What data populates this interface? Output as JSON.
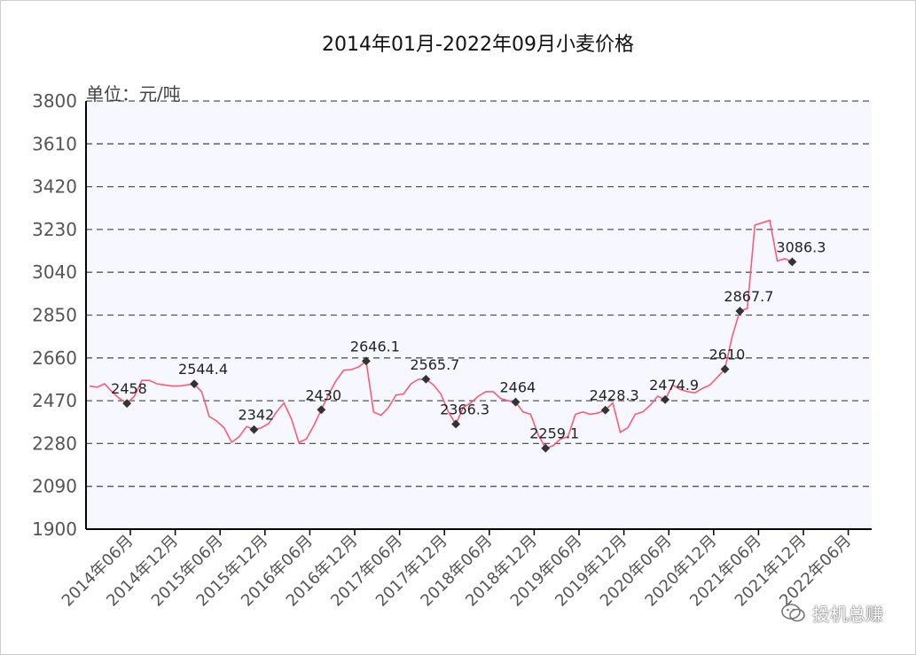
{
  "chart_data": {
    "type": "line",
    "title": "2014年01月-2022年09月小麦价格",
    "unit_label": "单位：元/吨",
    "ylim": [
      1900,
      3800
    ],
    "y_ticks": [
      "3800",
      "3610",
      "3420",
      "3230",
      "3040",
      "2850",
      "2660",
      "2470",
      "2280",
      "2090",
      "1900"
    ],
    "x_ticks": [
      "2014年06月",
      "2014年12月",
      "2015年06月",
      "2015年12月",
      "2016年06月",
      "2016年12月",
      "2017年06月",
      "2017年12月",
      "2018年06月",
      "2018年12月",
      "2019年06月",
      "2019年12月",
      "2020年06月",
      "2020年12月",
      "2021年06月",
      "2021年12月",
      "2022年06月"
    ],
    "grid": "horizontal-dashed",
    "series": [
      {
        "color": "#ff5a6e",
        "points": [
          [
            "2014-01",
            2535
          ],
          [
            "2014-02",
            2530
          ],
          [
            "2014-03",
            2545
          ],
          [
            "2014-04",
            2510
          ],
          [
            "2014-05",
            2480
          ],
          [
            "2014-06",
            2458
          ],
          [
            "2014-07",
            2490
          ],
          [
            "2014-08",
            2560
          ],
          [
            "2014-09",
            2560
          ],
          [
            "2014-10",
            2545
          ],
          [
            "2014-11",
            2540
          ],
          [
            "2014-12",
            2535
          ],
          [
            "2015-01",
            2535
          ],
          [
            "2015-02",
            2540
          ],
          [
            "2015-03",
            2544.4
          ],
          [
            "2015-04",
            2510
          ],
          [
            "2015-05",
            2400
          ],
          [
            "2015-06",
            2380
          ],
          [
            "2015-07",
            2350
          ],
          [
            "2015-08",
            2285
          ],
          [
            "2015-09",
            2310
          ],
          [
            "2015-10",
            2355
          ],
          [
            "2015-11",
            2342
          ],
          [
            "2015-12",
            2350
          ],
          [
            "2016-01",
            2370
          ],
          [
            "2016-02",
            2420
          ],
          [
            "2016-03",
            2460
          ],
          [
            "2016-04",
            2390
          ],
          [
            "2016-05",
            2285
          ],
          [
            "2016-06",
            2300
          ],
          [
            "2016-07",
            2360
          ],
          [
            "2016-08",
            2430
          ],
          [
            "2016-09",
            2500
          ],
          [
            "2016-10",
            2560
          ],
          [
            "2016-11",
            2605
          ],
          [
            "2016-12",
            2608
          ],
          [
            "2017-01",
            2620
          ],
          [
            "2017-02",
            2646.1
          ],
          [
            "2017-03",
            2420
          ],
          [
            "2017-04",
            2405
          ],
          [
            "2017-05",
            2440
          ],
          [
            "2017-06",
            2495
          ],
          [
            "2017-07",
            2500
          ],
          [
            "2017-08",
            2545
          ],
          [
            "2017-09",
            2565
          ],
          [
            "2017-10",
            2565.7
          ],
          [
            "2017-11",
            2540
          ],
          [
            "2017-12",
            2500
          ],
          [
            "2018-01",
            2420
          ],
          [
            "2018-02",
            2366.3
          ],
          [
            "2018-03",
            2440
          ],
          [
            "2018-04",
            2460
          ],
          [
            "2018-05",
            2490
          ],
          [
            "2018-06",
            2510
          ],
          [
            "2018-07",
            2510
          ],
          [
            "2018-08",
            2480
          ],
          [
            "2018-09",
            2470
          ],
          [
            "2018-10",
            2464
          ],
          [
            "2018-11",
            2420
          ],
          [
            "2018-12",
            2410
          ],
          [
            "2019-01",
            2320
          ],
          [
            "2019-02",
            2259.1
          ],
          [
            "2019-03",
            2270
          ],
          [
            "2019-04",
            2300
          ],
          [
            "2019-05",
            2310
          ],
          [
            "2019-06",
            2410
          ],
          [
            "2019-07",
            2420
          ],
          [
            "2019-08",
            2410
          ],
          [
            "2019-09",
            2415
          ],
          [
            "2019-10",
            2428.3
          ],
          [
            "2019-11",
            2460
          ],
          [
            "2019-12",
            2330
          ],
          [
            "2020-01",
            2350
          ],
          [
            "2020-02",
            2410
          ],
          [
            "2020-03",
            2420
          ],
          [
            "2020-04",
            2450
          ],
          [
            "2020-05",
            2490
          ],
          [
            "2020-06",
            2474.9
          ],
          [
            "2020-07",
            2540
          ],
          [
            "2020-08",
            2520
          ],
          [
            "2020-09",
            2510
          ],
          [
            "2020-10",
            2505
          ],
          [
            "2020-11",
            2525
          ],
          [
            "2020-12",
            2540
          ],
          [
            "2021-01",
            2575
          ],
          [
            "2021-02",
            2610
          ],
          [
            "2021-03",
            2760
          ],
          [
            "2021-04",
            2867.7
          ],
          [
            "2021-05",
            2880
          ],
          [
            "2021-06",
            3250
          ],
          [
            "2021-07",
            3260
          ],
          [
            "2021-08",
            3270
          ],
          [
            "2021-09",
            3090
          ],
          [
            "2021-10",
            3100
          ],
          [
            "2021-11",
            3086.3
          ]
        ],
        "labels": [
          {
            "at": "2014-06",
            "text": "2458"
          },
          {
            "at": "2015-03",
            "text": "2544.4"
          },
          {
            "at": "2015-11",
            "text": "2342"
          },
          {
            "at": "2016-08",
            "text": "2430"
          },
          {
            "at": "2017-02",
            "text": "2646.1"
          },
          {
            "at": "2017-10",
            "text": "2565.7"
          },
          {
            "at": "2018-02",
            "text": "2366.3"
          },
          {
            "at": "2018-10",
            "text": "2464"
          },
          {
            "at": "2019-02",
            "text": "2259.1"
          },
          {
            "at": "2019-10",
            "text": "2428.3"
          },
          {
            "at": "2020-06",
            "text": "2474.9"
          },
          {
            "at": "2021-02",
            "text": "2610"
          },
          {
            "at": "2021-04",
            "text": "2867.7"
          },
          {
            "at": "2021-11",
            "text": "3086.3"
          }
        ]
      }
    ]
  },
  "watermark": {
    "text": "投机总赚",
    "icon": "wechat-icon"
  }
}
